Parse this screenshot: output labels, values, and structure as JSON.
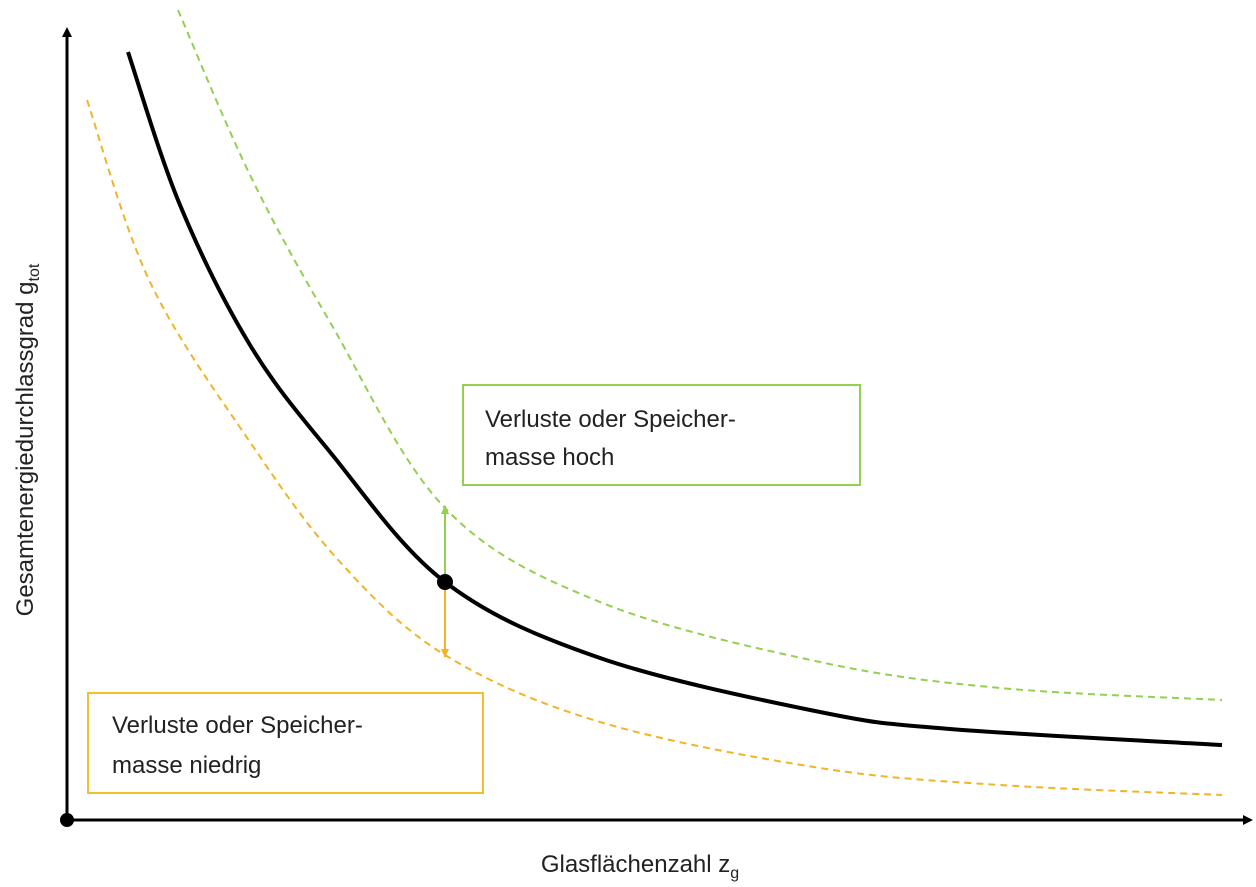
{
  "axes": {
    "x_label": {
      "text": "Glasflächenzahl z",
      "subscript": "g"
    },
    "y_label": {
      "text": "Gesamtenergiedurchlassgrad g",
      "subscript": "tot"
    }
  },
  "boxes": [
    {
      "lines": [
        "Verluste oder Speicher-",
        "masse hoch"
      ]
    },
    {
      "lines": [
        "Verluste oder Speicher-",
        "masse niedrig"
      ]
    }
  ]
}
